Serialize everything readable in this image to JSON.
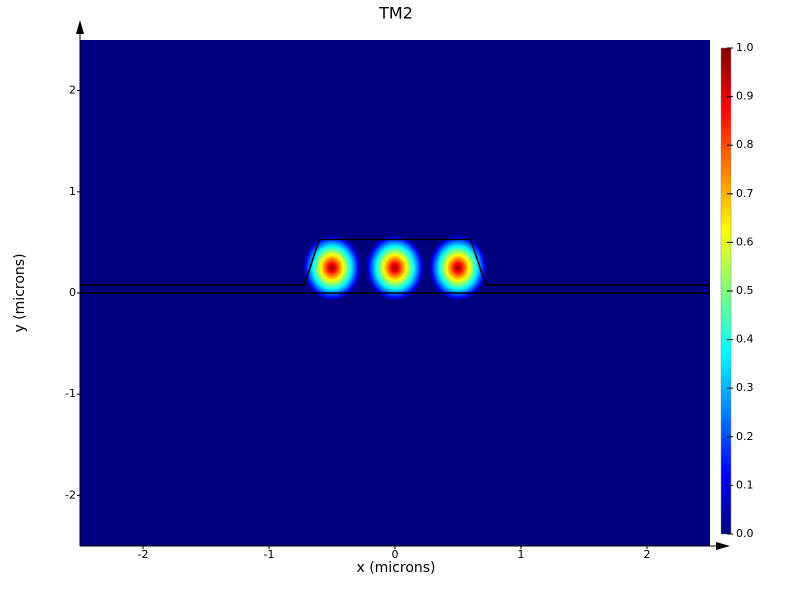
{
  "chart_data": {
    "type": "heatmap",
    "title": "TM2",
    "x_label": "x (microns)",
    "y_label": "y (microns)",
    "xlim": [
      -2.5,
      2.5
    ],
    "ylim": [
      -2.5,
      2.5
    ],
    "xticks": [
      -2,
      -1,
      0,
      1,
      2
    ],
    "yticks": [
      -2,
      -1,
      0,
      1,
      2
    ],
    "colorbar_lim": [
      0,
      1
    ],
    "colorbar_ticks": [
      {
        "value": 0,
        "label": "0.0"
      },
      0.1,
      0.2,
      0.3,
      0.4,
      0.5,
      0.6,
      0.7,
      0.8,
      0.9,
      {
        "value": 1,
        "label": "1.0"
      }
    ],
    "colormap": [
      "#00007f",
      "#0000ff",
      "#00ffff",
      "#ffff00",
      "#ff0000",
      "#7f0000"
    ],
    "spots": {
      "x": [
        -0.5,
        0,
        0.5
      ],
      "y": [
        0.25,
        0.25,
        0.25
      ],
      "values": [
        1,
        1,
        1
      ]
    },
    "outline": {
      "color": "#000000",
      "x": [
        -2.5,
        -0.72,
        -0.6,
        0.6,
        0.72,
        2.5
      ],
      "y": [
        0.08,
        0.08,
        0.53,
        0.53,
        0.08,
        0.08
      ]
    },
    "slab_base": {
      "x": [
        -2.5,
        2.5
      ],
      "y": [
        0,
        0
      ]
    }
  }
}
